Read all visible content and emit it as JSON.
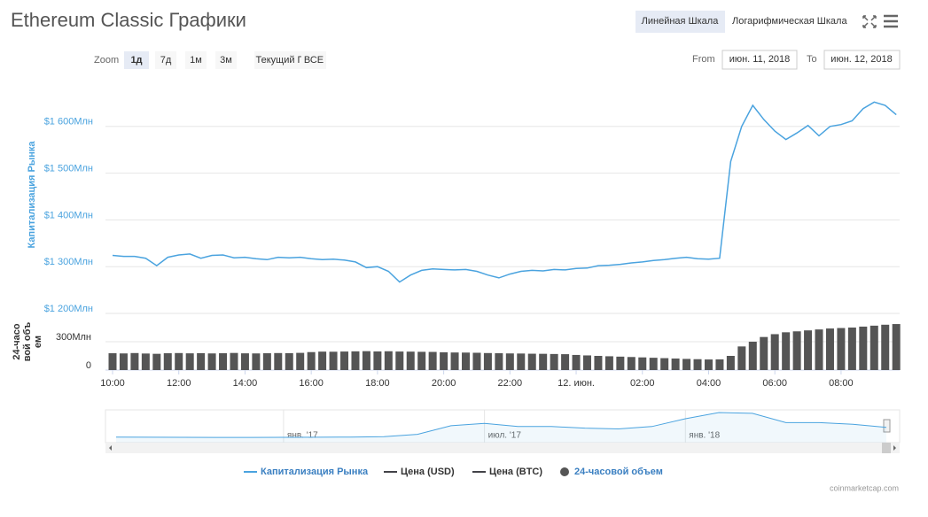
{
  "header": {
    "title": "Ethereum Classic Графики",
    "scale_buttons": [
      "Линейная Шкала",
      "Логарифмическая Шкала"
    ],
    "active_scale": 0
  },
  "zoom": {
    "label": "Zoom",
    "buttons": [
      "1д",
      "7д",
      "1м",
      "3м",
      "Текущий Г",
      "ВСЕ"
    ],
    "active": 0
  },
  "range": {
    "from_label": "From",
    "from": "июн. 11, 2018",
    "to_label": "To",
    "to": "июн. 12, 2018"
  },
  "chart_data": [
    {
      "type": "line",
      "ylabel": "Капитализация Рынка",
      "y2label": "24-часовой объем",
      "x": [
        "10:00",
        "10:20",
        "10:40",
        "11:00",
        "11:20",
        "11:40",
        "12:00",
        "12:20",
        "12:40",
        "13:00",
        "13:20",
        "13:40",
        "14:00",
        "14:20",
        "14:40",
        "15:00",
        "15:20",
        "15:40",
        "16:00",
        "16:20",
        "16:40",
        "17:00",
        "17:20",
        "17:40",
        "18:00",
        "18:20",
        "18:40",
        "19:00",
        "19:20",
        "19:40",
        "20:00",
        "20:20",
        "20:40",
        "21:00",
        "21:20",
        "21:40",
        "22:00",
        "22:20",
        "22:40",
        "23:00",
        "23:20",
        "23:40",
        "00:00",
        "00:20",
        "00:40",
        "01:00",
        "01:20",
        "01:40",
        "02:00",
        "02:20",
        "02:40",
        "03:00",
        "03:20",
        "03:40",
        "04:00",
        "04:20",
        "04:40",
        "05:00",
        "05:20",
        "05:40",
        "06:00",
        "06:20",
        "06:40",
        "07:00",
        "07:20",
        "07:40",
        "08:00",
        "08:20",
        "08:40",
        "09:00",
        "09:20",
        "09:40"
      ],
      "xticks": [
        "10:00",
        "12:00",
        "14:00",
        "16:00",
        "18:00",
        "20:00",
        "22:00",
        {
          "value": "00:00",
          "label": "12. июн."
        },
        "02:00",
        "04:00",
        "06:00",
        "08:00"
      ],
      "ylim": [
        1200,
        1700
      ],
      "yticks": [
        {
          "value": 1200,
          "label": "$1 200Млн"
        },
        {
          "value": 1300,
          "label": "$1 300Млн"
        },
        {
          "value": 1400,
          "label": "$1 400Млн"
        },
        {
          "value": 1500,
          "label": "$1 500Млн"
        },
        {
          "value": 1600,
          "label": "$1 600Млн"
        }
      ],
      "y2lim": [
        0,
        600
      ],
      "y2ticks": [
        0,
        {
          "value": 300,
          "label": "300Млн"
        }
      ],
      "grid": true,
      "legend": "bottom",
      "series": [
        {
          "name": "Капитализация Рынка",
          "color": "#4aa3df",
          "values": [
            1324,
            1322,
            1322,
            1318,
            1302,
            1320,
            1325,
            1327,
            1318,
            1324,
            1325,
            1319,
            1320,
            1317,
            1315,
            1320,
            1319,
            1320,
            1317,
            1315,
            1316,
            1314,
            1310,
            1298,
            1300,
            1290,
            1267,
            1282,
            1292,
            1295,
            1294,
            1293,
            1294,
            1290,
            1282,
            1276,
            1284,
            1290,
            1292,
            1291,
            1294,
            1293,
            1296,
            1297,
            1302,
            1303,
            1305,
            1308,
            1310,
            1313,
            1315,
            1318,
            1320,
            1317,
            1316,
            1318,
            1525,
            1600,
            1645,
            1615,
            1590,
            1572,
            1586,
            1602,
            1580,
            1600,
            1604,
            1612,
            1638,
            1652,
            1645,
            1625
          ]
        },
        {
          "name": "Цена (USD)",
          "color": "#434348",
          "visible": false
        },
        {
          "name": "Цена (BTC)",
          "color": "#434348",
          "visible": false
        },
        {
          "name": "24-часовой объем",
          "color": "#555555",
          "type": "bar",
          "axis": "y2",
          "values": [
            178,
            176,
            180,
            175,
            172,
            178,
            180,
            177,
            179,
            176,
            178,
            181,
            177,
            176,
            178,
            180,
            179,
            182,
            190,
            195,
            194,
            196,
            198,
            200,
            197,
            199,
            196,
            195,
            193,
            192,
            188,
            186,
            185,
            183,
            180,
            178,
            176,
            175,
            173,
            172,
            170,
            168,
            160,
            155,
            150,
            146,
            142,
            138,
            134,
            130,
            126,
            122,
            118,
            115,
            112,
            113,
            150,
            250,
            300,
            350,
            380,
            400,
            410,
            420,
            430,
            440,
            445,
            450,
            460,
            470,
            480,
            487
          ]
        }
      ]
    },
    {
      "type": "line",
      "color": "#4aa3df",
      "categories": [
        null,
        null,
        null,
        null,
        null,
        "янв. '17",
        null,
        null,
        null,
        null,
        null,
        "июл. '17",
        null,
        null,
        null,
        null,
        null,
        "янв. '18",
        null,
        null,
        null,
        null,
        null,
        null
      ],
      "values": [
        150,
        130,
        110,
        100,
        100,
        110,
        130,
        150,
        200,
        500,
        1600,
        1900,
        1500,
        1500,
        1300,
        1200,
        1500,
        2500,
        3300,
        3200,
        2000,
        2000,
        1800,
        1400
      ]
    }
  ],
  "credit": "coinmarketcap.com"
}
